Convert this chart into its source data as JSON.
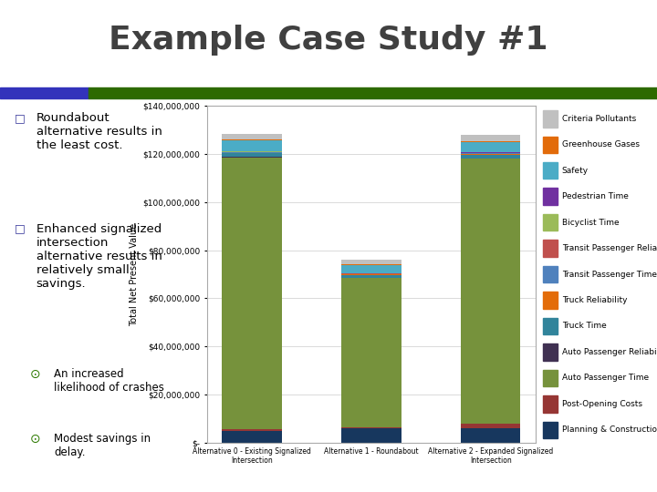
{
  "categories": [
    "Alternative 0 - Existing Signalized\nIntersection",
    "Alternative 1 - Roundabout",
    "Alternative 2 - Expanded Signalized\nIntersection"
  ],
  "series": [
    {
      "label": "Planning & Construction Costs",
      "color": "#17375e",
      "values": [
        5000000,
        6000000,
        6000000
      ]
    },
    {
      "label": "Post-Opening Costs",
      "color": "#963634",
      "values": [
        500000,
        400000,
        2000000
      ]
    },
    {
      "label": "Auto Passenger Time",
      "color": "#76923c",
      "values": [
        113000000,
        62000000,
        110000000
      ]
    },
    {
      "label": "Auto Passenger Reliability",
      "color": "#403152",
      "values": [
        200000,
        150000,
        200000
      ]
    },
    {
      "label": "Truck Time",
      "color": "#31849b",
      "values": [
        1500000,
        1200000,
        1500000
      ]
    },
    {
      "label": "Truck Reliability",
      "color": "#e36c09",
      "values": [
        100000,
        80000,
        100000
      ]
    },
    {
      "label": "Transit Passenger Time",
      "color": "#4f81bd",
      "values": [
        400000,
        300000,
        400000
      ]
    },
    {
      "label": "Transit Passenger Reliability",
      "color": "#c0504d",
      "values": [
        100000,
        80000,
        100000
      ]
    },
    {
      "label": "Bicyclist Time",
      "color": "#9bbb59",
      "values": [
        150000,
        120000,
        150000
      ]
    },
    {
      "label": "Pedestrian Time",
      "color": "#7030a0",
      "values": [
        100000,
        80000,
        100000
      ]
    },
    {
      "label": "Safety",
      "color": "#4bacc6",
      "values": [
        4500000,
        3500000,
        4500000
      ]
    },
    {
      "label": "Greenhouse Gases",
      "color": "#e26b0a",
      "values": [
        300000,
        200000,
        300000
      ]
    },
    {
      "label": "Criteria Pollutants",
      "color": "#c0c0c0",
      "values": [
        2500000,
        2000000,
        2500000
      ]
    }
  ],
  "ylabel": "Total Net Present Value",
  "ylim": [
    0,
    140000000
  ],
  "yticks": [
    0,
    20000000,
    40000000,
    60000000,
    80000000,
    100000000,
    120000000,
    140000000
  ],
  "ytick_labels": [
    "$-",
    "$20,000,000",
    "$40,000,000",
    "$60,000,000",
    "$80,000,000",
    "$100,000,000",
    "$120,000,000",
    "$140,000,000"
  ],
  "title": "Example Case Study #1",
  "title_color": "#404040",
  "bar_width": 0.5,
  "background_color": "#ffffff",
  "header_bar_left_color": "#3333bb",
  "header_bar_right_color": "#2d6a00",
  "header_split": 0.135,
  "bullet_color": "#3a3a9c",
  "sub_bullet_color": "#2d7a00",
  "legend_fontsize": 6.5,
  "chart_border_color": "#aaaaaa"
}
